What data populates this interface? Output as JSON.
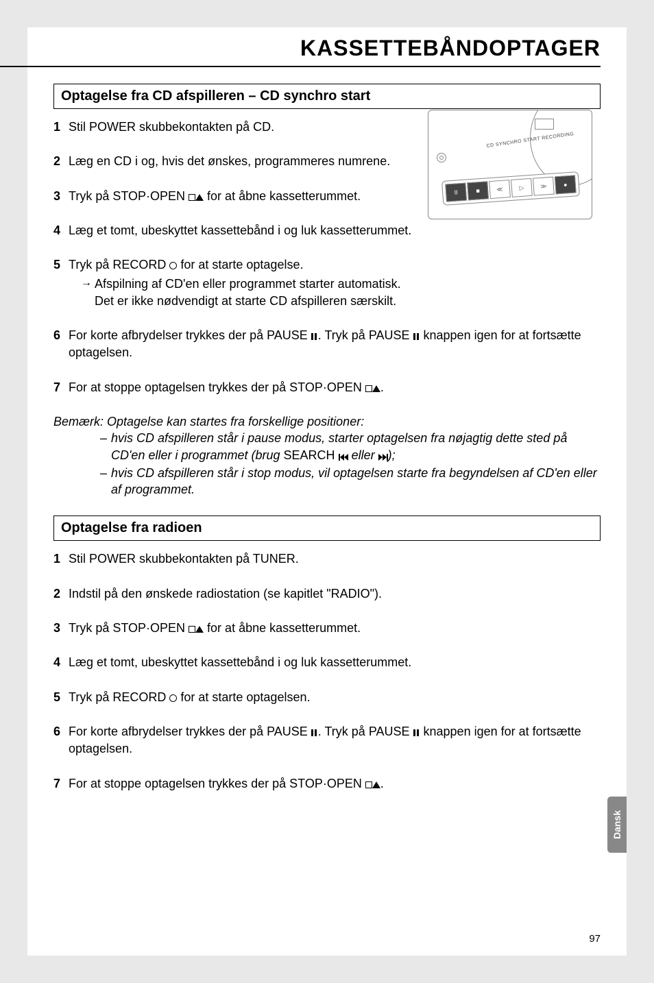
{
  "header": {
    "title": "KASSETTEBÅNDOPTAGER"
  },
  "illustration": {
    "label": "CD SYNCHRO START RECORDING"
  },
  "section1": {
    "title": "Optagelse fra CD afspilleren – CD synchro start",
    "s1": "Stil POWER skubbekontakten på CD.",
    "s2": "Læg en CD i og, hvis det ønskes, programmeres numrene.",
    "s3a": "Tryk på STOP·OPEN ",
    "s3b": " for at åbne kassetterummet.",
    "s4": "Læg et tomt, ubeskyttet kassettebånd i og luk kassetterummet.",
    "s5a": "Tryk på RECORD ",
    "s5b": " for at starte optagelse.",
    "s5sub": "Afspilning af CD'en eller programmet starter automatisk. Det er ikke nødvendigt at starte CD afspilleren særskilt.",
    "s6a": "For korte afbrydelser trykkes der på PAUSE ",
    "s6b": ". Tryk på PAUSE ",
    "s6c": " knappen igen for at fortsætte optagelsen.",
    "s7a": "For at stoppe optagelsen trykkes der på STOP·OPEN ",
    "s7b": "."
  },
  "note": {
    "intro": "Bemærk: Optagelse kan startes fra forskellige positioner:",
    "l1a": "hvis CD afspilleren står i pause modus, starter optagelsen fra nøjagtig dette sted på CD'en eller i programmet (brug ",
    "l1search": "SEARCH",
    "l1mid": " eller ",
    "l1b": ");",
    "l2": "hvis CD afspilleren står i stop modus, vil optagelsen starte fra begyndelsen af CD'en eller af programmet."
  },
  "section2": {
    "title": "Optagelse fra radioen",
    "s1": "Stil POWER skubbekontakten på TUNER.",
    "s2": "Indstil på den ønskede radiostation (se kapitlet \"RADIO\").",
    "s3a": "Tryk på STOP·OPEN ",
    "s3b": " for at åbne kassetterummet.",
    "s4": "Læg et tomt, ubeskyttet kassettebånd i og luk kassetterummet.",
    "s5a": "Tryk på RECORD ",
    "s5b": " for at starte optagelsen.",
    "s6a": "For korte afbrydelser trykkes der på PAUSE ",
    "s6b": ". Tryk på PAUSE ",
    "s6c": " knappen igen for at fortsætte optagelsen.",
    "s7a": "For at stoppe optagelsen trykkes der på STOP·OPEN ",
    "s7b": "."
  },
  "sidetab": "Dansk",
  "pagenum": "97"
}
